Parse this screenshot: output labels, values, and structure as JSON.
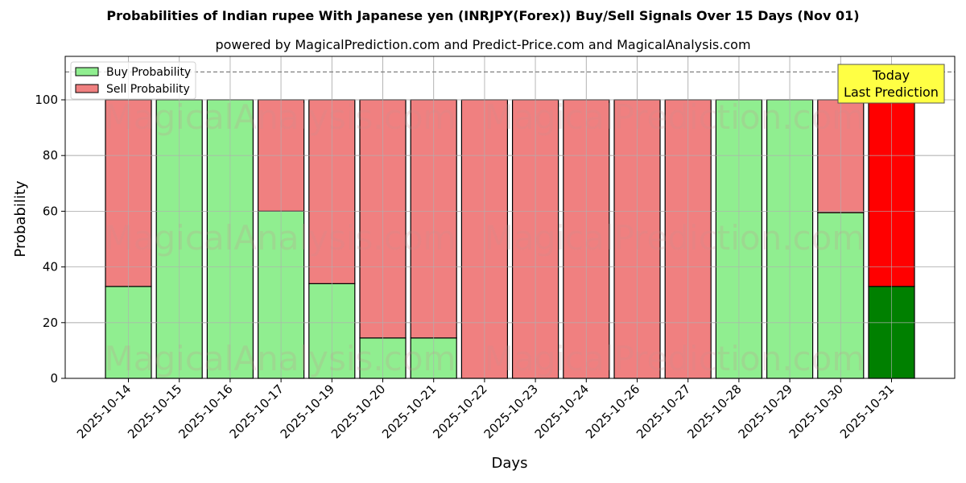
{
  "title": "Probabilities of Indian rupee With Japanese yen (INRJPY(Forex)) Buy/Sell Signals Over 15 Days (Nov 01)",
  "subtitle": "powered by MagicalPrediction.com and Predict-Price.com and MagicalAnalysis.com",
  "watermarks": [
    "MagicalAnalysis.com",
    "MagicalPrediction.com"
  ],
  "annotation": {
    "line1": "Today",
    "line2": "Last Prediction"
  },
  "colors": {
    "buy": "#90ee90",
    "sell": "#f08080",
    "today_buy": "#008000",
    "today_sell": "#ff0000",
    "annotation_bg": "#ffff44"
  },
  "chart_data": {
    "type": "bar",
    "stacked": true,
    "title": "Probabilities of Indian rupee With Japanese yen (INRJPY(Forex)) Buy/Sell Signals Over 15 Days (Nov 01)",
    "subtitle": "powered by MagicalPrediction.com and Predict-Price.com and MagicalAnalysis.com",
    "xlabel": "Days",
    "ylabel": "Probability",
    "ylim": [
      0,
      115
    ],
    "yticks": [
      0,
      20,
      40,
      60,
      80,
      100
    ],
    "reference_line": {
      "y": 110,
      "style": "dashed"
    },
    "grid": true,
    "legend": {
      "position": "upper left",
      "entries": [
        "Buy Probability",
        "Sell Probability"
      ]
    },
    "categories": [
      "2025-10-14",
      "2025-10-15",
      "2025-10-16",
      "2025-10-17",
      "2025-10-19",
      "2025-10-20",
      "2025-10-21",
      "2025-10-22",
      "2025-10-23",
      "2025-10-24",
      "2025-10-26",
      "2025-10-27",
      "2025-10-28",
      "2025-10-29",
      "2025-10-30",
      "2025-10-31"
    ],
    "series": [
      {
        "name": "Buy Probability",
        "values": [
          33,
          100,
          100,
          60,
          34,
          14.5,
          14.5,
          0,
          0,
          0,
          0,
          0,
          100,
          100,
          59.5,
          33
        ]
      },
      {
        "name": "Sell Probability",
        "values": [
          67,
          0,
          0,
          40,
          66,
          85.5,
          85.5,
          100,
          100,
          100,
          100,
          100,
          0,
          0,
          40.5,
          67
        ]
      }
    ],
    "annotations": [
      {
        "text": "Today\nLast Prediction",
        "category": "2025-10-31"
      }
    ]
  }
}
